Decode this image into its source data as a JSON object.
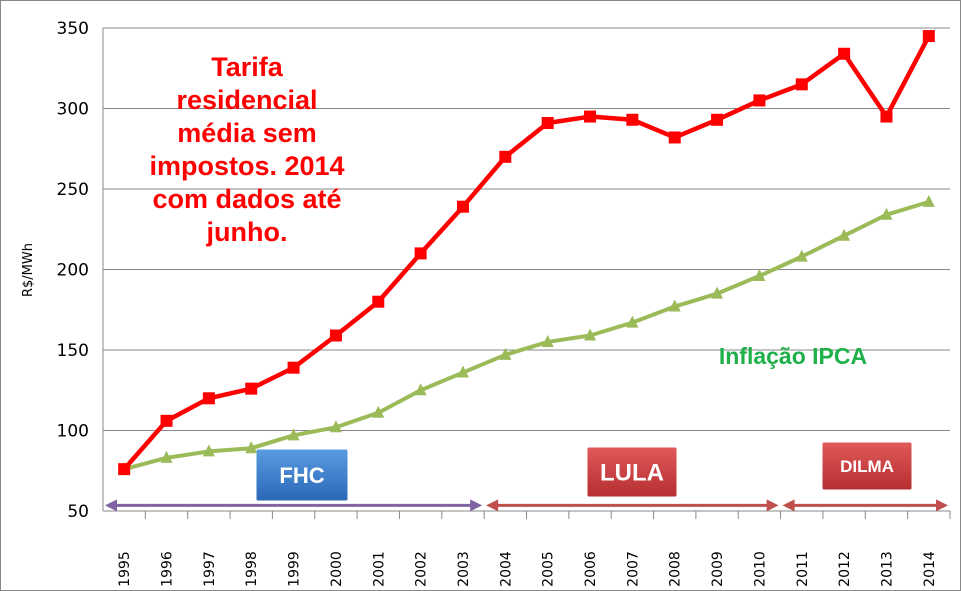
{
  "chart_data": {
    "type": "line",
    "title": "",
    "ylabel": "R$/MWh",
    "xlabel": "",
    "ylim": [
      50,
      350
    ],
    "yticks": [
      50,
      100,
      150,
      200,
      250,
      300,
      350
    ],
    "grid": true,
    "categories": [
      "1995",
      "1996",
      "1997",
      "1998",
      "1999",
      "2000",
      "2001",
      "2002",
      "2003",
      "2004",
      "2005",
      "2006",
      "2007",
      "2008",
      "2009",
      "2010",
      "2011",
      "2012",
      "2013",
      "2014"
    ],
    "series": [
      {
        "name": "Tarifa residencial média sem impostos",
        "color": "#ff0000",
        "marker": "square",
        "values": [
          76,
          106,
          120,
          126,
          139,
          159,
          180,
          210,
          239,
          270,
          291,
          295,
          293,
          282,
          293,
          305,
          315,
          334,
          295,
          345
        ]
      },
      {
        "name": "Inflação IPCA",
        "color": "#9bbb59",
        "marker": "triangle",
        "values": [
          76,
          83,
          87,
          89,
          97,
          102,
          111,
          125,
          136,
          147,
          155,
          159,
          167,
          177,
          185,
          196,
          208,
          221,
          234,
          242
        ]
      }
    ],
    "annotations": {
      "red_note": [
        "Tarifa",
        "residencial",
        "média sem",
        "impostos. 2014",
        "com dados até",
        "junho."
      ],
      "green_note": "Inflação IPCA"
    },
    "periods": [
      {
        "label": "FHC",
        "from": "1995",
        "to": "2003",
        "box_color": "#3a7bc8",
        "arrow_color": "#8064a2"
      },
      {
        "label": "LULA",
        "from": "2004",
        "to": "2010",
        "box_color": "#c0393b",
        "arrow_color": "#c0504d"
      },
      {
        "label": "DILMA",
        "from": "2011",
        "to": "2014",
        "box_color": "#c0393b",
        "arrow_color": "#c0504d"
      }
    ]
  }
}
